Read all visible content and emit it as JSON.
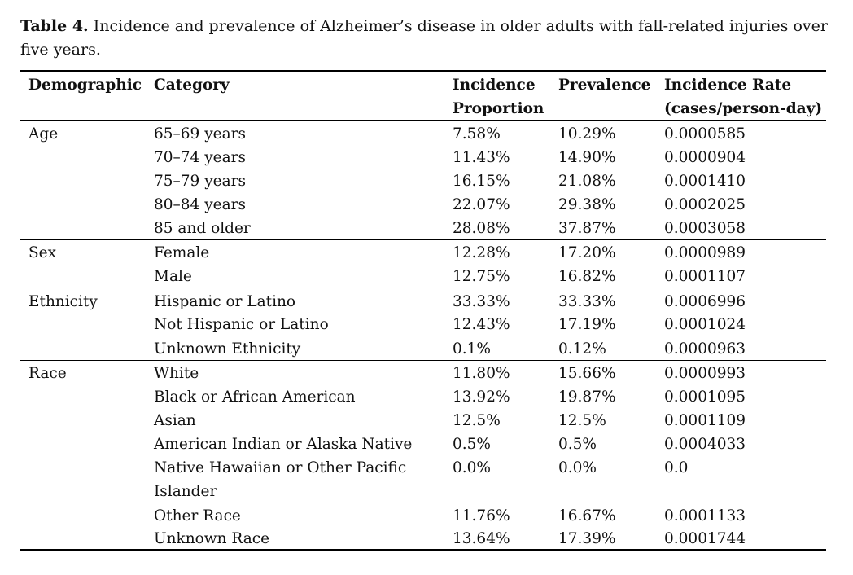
{
  "caption": {
    "label": "Table 4.",
    "text": "Incidence and prevalence of Alzheimer’s disease in older adults with fall-related injuries over five years."
  },
  "headers": {
    "demographic": "Demographic",
    "category": "Category",
    "incidence_line1": "Incidence",
    "incidence_line2": "Proportion",
    "prevalence": "Prevalence",
    "rate_line1": "Incidence Rate",
    "rate_line2": "(cases/person-day)"
  },
  "groups": {
    "age": {
      "label": "Age",
      "rows": [
        {
          "category": "65–69 years",
          "incidence": "7.58%",
          "prevalence": "10.29%",
          "rate": "0.0000585"
        },
        {
          "category": "70–74 years",
          "incidence": "11.43%",
          "prevalence": "14.90%",
          "rate": "0.0000904"
        },
        {
          "category": "75–79 years",
          "incidence": "16.15%",
          "prevalence": "21.08%",
          "rate": "0.0001410"
        },
        {
          "category": "80–84 years",
          "incidence": "22.07%",
          "prevalence": "29.38%",
          "rate": "0.0002025"
        },
        {
          "category": "85 and older",
          "incidence": "28.08%",
          "prevalence": "37.87%",
          "rate": "0.0003058"
        }
      ]
    },
    "sex": {
      "label": "Sex",
      "rows": [
        {
          "category": "Female",
          "incidence": "12.28%",
          "prevalence": "17.20%",
          "rate": "0.0000989"
        },
        {
          "category": "Male",
          "incidence": "12.75%",
          "prevalence": "16.82%",
          "rate": "0.0001107"
        }
      ]
    },
    "ethnicity": {
      "label": "Ethnicity",
      "rows": [
        {
          "category": "Hispanic or Latino",
          "incidence": "33.33%",
          "prevalence": "33.33%",
          "rate": "0.0006996"
        },
        {
          "category": "Not Hispanic or Latino",
          "incidence": "12.43%",
          "prevalence": "17.19%",
          "rate": "0.0001024"
        },
        {
          "category": "Unknown Ethnicity",
          "incidence": "0.1%",
          "prevalence": "0.12%",
          "rate": "0.0000963"
        }
      ]
    },
    "race": {
      "label": "Race",
      "rows": [
        {
          "category": "White",
          "incidence": "11.80%",
          "prevalence": "15.66%",
          "rate": "0.0000993"
        },
        {
          "category": "Black or African American",
          "incidence": "13.92%",
          "prevalence": "19.87%",
          "rate": "0.0001095"
        },
        {
          "category": "Asian",
          "incidence": "12.5%",
          "prevalence": "12.5%",
          "rate": "0.0001109"
        },
        {
          "category": "American Indian or Alaska Native",
          "incidence": "0.5%",
          "prevalence": "0.5%",
          "rate": "0.0004033"
        },
        {
          "category": "Native Hawaiian or Other Pacific",
          "category_line2": "Islander",
          "incidence": "0.0%",
          "prevalence": "0.0%",
          "rate": "0.0"
        },
        {
          "category": "Other Race",
          "incidence": "11.76%",
          "prevalence": "16.67%",
          "rate": "0.0001133"
        },
        {
          "category": "Unknown Race",
          "incidence": "13.64%",
          "prevalence": "17.39%",
          "rate": "0.0001744"
        }
      ]
    }
  }
}
